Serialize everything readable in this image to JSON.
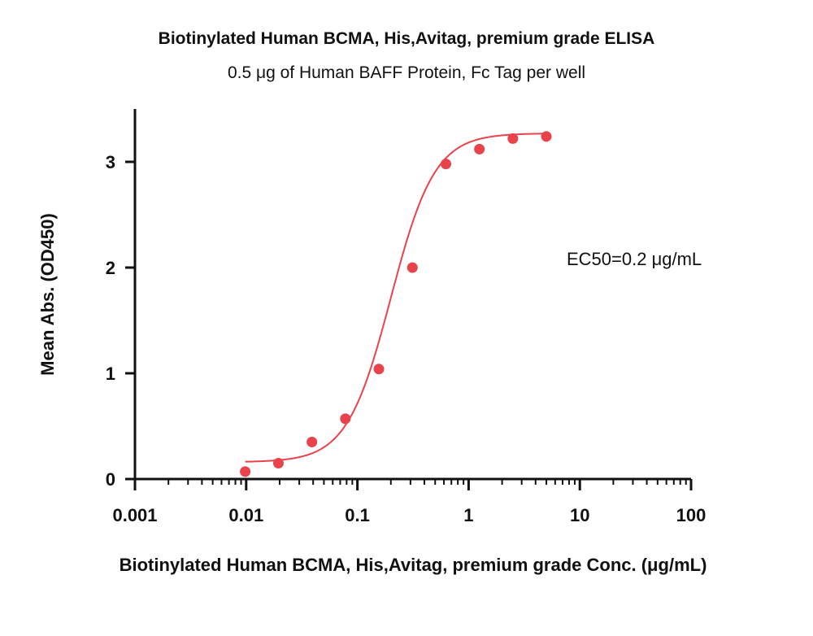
{
  "chart_data": {
    "type": "scatter",
    "title": "Biotinylated Human BCMA, His,Avitag, premium grade ELISA",
    "subtitle": "0.5 μg of Human BAFF Protein, Fc Tag per well",
    "xlabel": "Biotinylated Human BCMA, His,Avitag, premium grade Conc. (μg/mL)",
    "ylabel": "Mean Abs. (OD450)",
    "x_scale": "log",
    "xlim": [
      0.001,
      100
    ],
    "ylim": [
      0,
      3.5
    ],
    "x_ticks": [
      0.001,
      0.01,
      0.1,
      1,
      10,
      100
    ],
    "x_tick_labels": [
      "0.001",
      "0.01",
      "0.1",
      "1",
      "10",
      "100"
    ],
    "y_ticks": [
      0,
      1,
      2,
      3
    ],
    "y_tick_labels": [
      "0",
      "1",
      "2",
      "3"
    ],
    "grid": false,
    "series": [
      {
        "color": "#e8434b",
        "points": [
          {
            "x": 0.0098,
            "y": 0.07
          },
          {
            "x": 0.0195,
            "y": 0.15
          },
          {
            "x": 0.039,
            "y": 0.35
          },
          {
            "x": 0.078,
            "y": 0.57
          },
          {
            "x": 0.156,
            "y": 1.04
          },
          {
            "x": 0.3125,
            "y": 2.0
          },
          {
            "x": 0.625,
            "y": 2.98
          },
          {
            "x": 1.25,
            "y": 3.12
          },
          {
            "x": 2.5,
            "y": 3.22
          },
          {
            "x": 5.0,
            "y": 3.24
          }
        ],
        "fit_curve": {
          "bottom": 0.16,
          "top": 3.27,
          "ec50": 0.2,
          "hill": 2.2,
          "x_range": [
            0.0098,
            5.0
          ]
        }
      }
    ],
    "annotations": [
      {
        "text": "EC50=0.2 μg/mL"
      }
    ]
  }
}
